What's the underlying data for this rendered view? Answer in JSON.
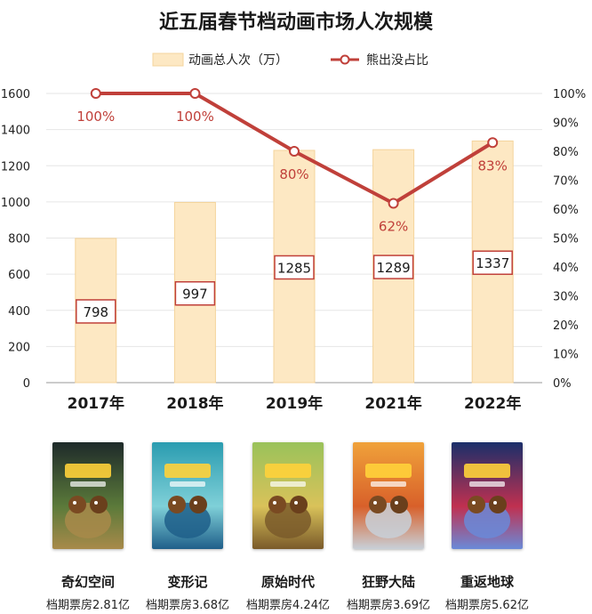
{
  "chart_data": {
    "type": "bar",
    "title": "近五届春节档动画市场人次规模",
    "categories": [
      "2017年",
      "2018年",
      "2019年",
      "2021年",
      "2022年"
    ],
    "series": [
      {
        "name": "动画总人次（万）",
        "type": "bar",
        "axis": "left",
        "values": [
          798,
          997,
          1285,
          1289,
          1337
        ],
        "labels": [
          "798",
          "997",
          "1285",
          "1289",
          "1337"
        ]
      },
      {
        "name": "熊出没占比",
        "type": "line",
        "axis": "right",
        "values": [
          100,
          100,
          80,
          62,
          83
        ],
        "labels": [
          "100%",
          "100%",
          "80%",
          "62%",
          "83%"
        ]
      }
    ],
    "y_left": {
      "min": 0,
      "max": 1600,
      "ticks": [
        "0",
        "200",
        "400",
        "600",
        "800",
        "1000",
        "1200",
        "1400",
        "1600"
      ]
    },
    "y_right": {
      "min": 0,
      "max": 100,
      "ticks": [
        "0%",
        "10%",
        "20%",
        "30%",
        "40%",
        "50%",
        "60%",
        "70%",
        "80%",
        "90%",
        "100%"
      ]
    },
    "grid": "horizontal",
    "legend_position": "top",
    "colors": {
      "bar_fill": "#fde8c3",
      "bar_stroke": "#f4d49c",
      "line": "#c0403a",
      "value_box_border": "#c0403a",
      "grid": "#e6e6e6"
    }
  },
  "movies": [
    {
      "title": "奇幻空间",
      "box_office": "档期票房2.81亿",
      "poster": "poster-forest",
      "colors": [
        "#1e2a2a",
        "#5b7a3a",
        "#a88a4a"
      ]
    },
    {
      "title": "变形记",
      "box_office": "档期票房3.68亿",
      "poster": "poster-ocean",
      "colors": [
        "#2a9cb0",
        "#7fd0d8",
        "#1f5f8a"
      ]
    },
    {
      "title": "原始时代",
      "box_office": "档期票房4.24亿",
      "poster": "poster-prehistoric",
      "colors": [
        "#9ac25a",
        "#d9c25a",
        "#7a5a2a"
      ]
    },
    {
      "title": "狂野大陆",
      "box_office": "档期票房3.69亿",
      "poster": "poster-wild",
      "colors": [
        "#f0a23a",
        "#d8602a",
        "#c8d0d8"
      ]
    },
    {
      "title": "重返地球",
      "box_office": "档期票房5.62亿",
      "poster": "poster-space",
      "colors": [
        "#1a2f6a",
        "#c03050",
        "#6a8ad8"
      ]
    }
  ]
}
